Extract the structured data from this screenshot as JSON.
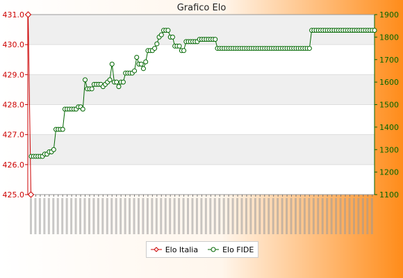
{
  "chart_data": {
    "type": "line",
    "title": "Grafico Elo",
    "colors": {
      "Elo Italia": "#cc0000",
      "Elo FIDE": "#006600",
      "bg_left": "#ffffff",
      "bg_right": "#ff8c1a"
    },
    "left_axis": {
      "min": 425.0,
      "max": 431.0,
      "ticks": [
        "425.0",
        "426.0",
        "427.0",
        "428.0",
        "429.0",
        "430.0",
        "431.0"
      ]
    },
    "right_axis": {
      "min": 1100,
      "max": 1900,
      "ticks": [
        "1100",
        "1200",
        "1300",
        "1400",
        "1500",
        "1600",
        "1700",
        "1800",
        "1900"
      ]
    },
    "legend": {
      "position": "bottom-center"
    },
    "grid": true,
    "series": [
      {
        "name": "Elo Italia",
        "axis": "left",
        "values": [
          431.0,
          425.0
        ]
      },
      {
        "name": "Elo FIDE",
        "axis": "right",
        "values": [
          1270,
          1270,
          1270,
          1270,
          1270,
          1270,
          1280,
          1280,
          1290,
          1290,
          1300,
          1390,
          1390,
          1390,
          1390,
          1480,
          1480,
          1480,
          1480,
          1480,
          1480,
          1490,
          1490,
          1480,
          1610,
          1570,
          1570,
          1570,
          1590,
          1590,
          1590,
          1590,
          1580,
          1590,
          1600,
          1610,
          1680,
          1600,
          1600,
          1580,
          1600,
          1600,
          1640,
          1640,
          1640,
          1640,
          1650,
          1710,
          1680,
          1680,
          1660,
          1690,
          1740,
          1740,
          1740,
          1750,
          1770,
          1800,
          1810,
          1830,
          1830,
          1830,
          1800,
          1800,
          1760,
          1760,
          1760,
          1740,
          1740,
          1780,
          1780,
          1780,
          1780,
          1780,
          1780,
          1790,
          1790,
          1790,
          1790,
          1790,
          1790,
          1790,
          1790,
          1750,
          1750,
          1750,
          1750,
          1750,
          1750,
          1750,
          1750,
          1750,
          1750,
          1750,
          1750,
          1750,
          1750,
          1750,
          1750,
          1750,
          1750,
          1750,
          1750,
          1750,
          1750,
          1750,
          1750,
          1750,
          1750,
          1750,
          1750,
          1750,
          1750,
          1750,
          1750,
          1750,
          1750,
          1750,
          1750,
          1750,
          1750,
          1750,
          1750,
          1750,
          1750,
          1830,
          1830,
          1830,
          1830,
          1830,
          1830,
          1830,
          1830,
          1830,
          1830,
          1830,
          1830,
          1830,
          1830,
          1830,
          1830,
          1830,
          1830,
          1830,
          1830,
          1830,
          1830,
          1830,
          1830,
          1830,
          1830,
          1830,
          1830,
          1830
        ]
      }
    ]
  }
}
